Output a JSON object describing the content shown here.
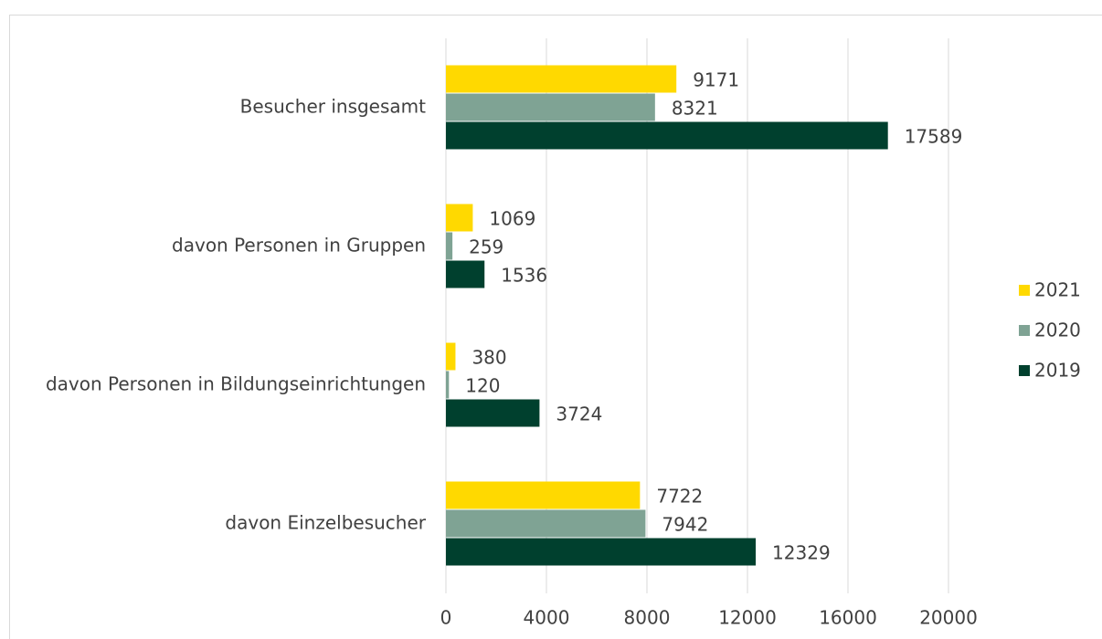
{
  "chart_data": {
    "type": "bar",
    "orientation": "horizontal",
    "categories": [
      "Besucher insgesamt",
      "davon Personen in Gruppen",
      "davon Personen in Bildungseinrichtungen",
      "davon Einzelbesucher"
    ],
    "series": [
      {
        "name": "2021",
        "color": "#ffd900",
        "values": [
          9171,
          1069,
          380,
          7722
        ]
      },
      {
        "name": "2020",
        "color": "#7fa394",
        "values": [
          8321,
          259,
          120,
          7942
        ]
      },
      {
        "name": "2019",
        "color": "#00402e",
        "values": [
          17589,
          1536,
          3724,
          12329
        ]
      }
    ],
    "xlim": [
      0,
      20000
    ],
    "xticks": [
      0,
      4000,
      8000,
      12000,
      16000,
      20000
    ],
    "grid": true,
    "legend": "right"
  }
}
